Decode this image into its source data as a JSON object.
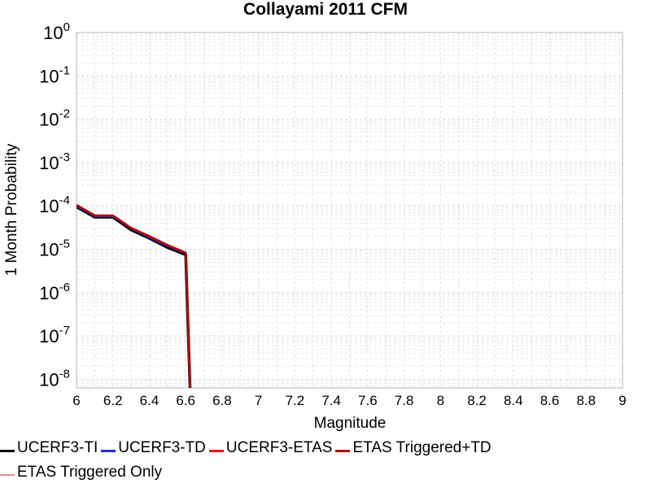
{
  "chart_data": {
    "type": "line",
    "title": "Collayami 2011 CFM",
    "xlabel": "Magnitude",
    "ylabel": "1 Month Probability",
    "xlim": [
      6,
      9
    ],
    "ylim_exponent": [
      -8.2,
      0
    ],
    "y_scale": "log",
    "grid": true,
    "legend_placement": "bottom",
    "x_ticks": [
      "6",
      "6.2",
      "6.4",
      "6.6",
      "6.8",
      "7",
      "7.2",
      "7.4",
      "7.6",
      "7.8",
      "8",
      "8.2",
      "8.4",
      "8.6",
      "8.8",
      "9"
    ],
    "y_ticks": [
      {
        "exp": 0,
        "base": "10",
        "sup": "0"
      },
      {
        "exp": -1,
        "base": "10",
        "sup": "-1"
      },
      {
        "exp": -2,
        "base": "10",
        "sup": "-2"
      },
      {
        "exp": -3,
        "base": "10",
        "sup": "-3"
      },
      {
        "exp": -4,
        "base": "10",
        "sup": "-4"
      },
      {
        "exp": -5,
        "base": "10",
        "sup": "-5"
      },
      {
        "exp": -6,
        "base": "10",
        "sup": "-6"
      },
      {
        "exp": -7,
        "base": "10",
        "sup": "-7"
      },
      {
        "exp": -8,
        "base": "10",
        "sup": "-8"
      }
    ],
    "series": [
      {
        "name": "UCERF3-TI",
        "color": "#000000",
        "x": [
          6.0,
          6.1,
          6.2,
          6.3,
          6.4,
          6.5,
          6.6,
          6.63
        ],
        "y": [
          9.5e-05,
          5.5e-05,
          5.5e-05,
          2.8e-05,
          1.8e-05,
          1.1e-05,
          7.5e-06,
          1e-09
        ]
      },
      {
        "name": "UCERF3-TD",
        "color": "#1f2fd6",
        "x": [
          6.0,
          6.1,
          6.2,
          6.3,
          6.4,
          6.5,
          6.6,
          6.63
        ],
        "y": [
          0.0001,
          5.8e-05,
          5.8e-05,
          3e-05,
          1.9e-05,
          1.2e-05,
          8e-06,
          1e-09
        ]
      },
      {
        "name": "UCERF3-ETAS",
        "color": "#ee1111",
        "x": [
          6.0,
          6.1,
          6.2,
          6.3,
          6.4,
          6.5,
          6.6,
          6.63
        ],
        "y": [
          0.000105,
          6e-05,
          6e-05,
          3.1e-05,
          2e-05,
          1.25e-05,
          8.3e-06,
          1e-09
        ]
      },
      {
        "name": "ETAS Triggered+TD",
        "color": "#b00000",
        "x": [
          6.0,
          6.1,
          6.2,
          6.3,
          6.4,
          6.5,
          6.6,
          6.63
        ],
        "y": [
          0.000105,
          6e-05,
          6e-05,
          3.1e-05,
          2e-05,
          1.25e-05,
          8.3e-06,
          1e-09
        ]
      },
      {
        "name": "ETAS Triggered Only",
        "color": "#f08a8a",
        "x": [],
        "y": []
      }
    ]
  }
}
